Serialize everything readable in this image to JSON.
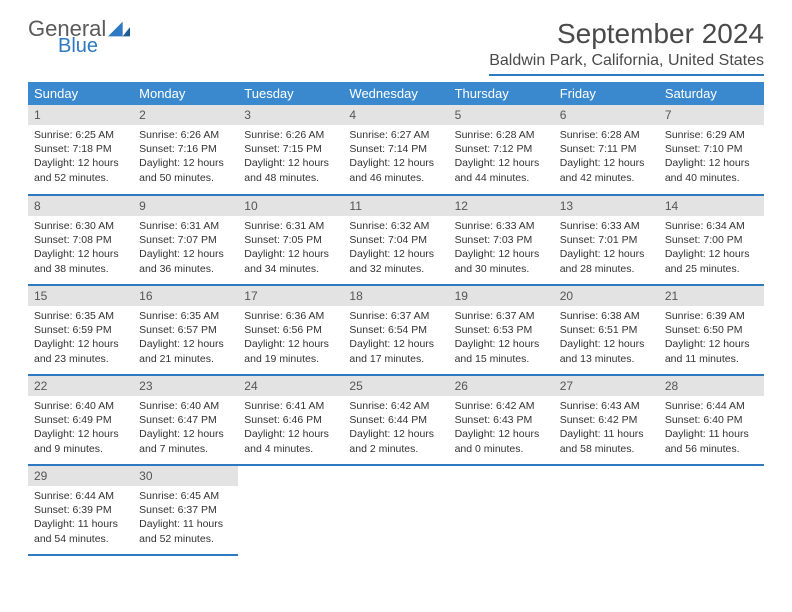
{
  "logo": {
    "general": "General",
    "blue": "Blue"
  },
  "title": "September 2024",
  "location": "Baldwin Park, California, United States",
  "colors": {
    "header_bg": "#3a89cf",
    "accent": "#2f78c2",
    "daynum_bg": "#e3e3e3",
    "text": "#333333"
  },
  "day_headers": [
    "Sunday",
    "Monday",
    "Tuesday",
    "Wednesday",
    "Thursday",
    "Friday",
    "Saturday"
  ],
  "weeks": [
    [
      {
        "num": "1",
        "sunrise": "Sunrise: 6:25 AM",
        "sunset": "Sunset: 7:18 PM",
        "daylight": "Daylight: 12 hours and 52 minutes."
      },
      {
        "num": "2",
        "sunrise": "Sunrise: 6:26 AM",
        "sunset": "Sunset: 7:16 PM",
        "daylight": "Daylight: 12 hours and 50 minutes."
      },
      {
        "num": "3",
        "sunrise": "Sunrise: 6:26 AM",
        "sunset": "Sunset: 7:15 PM",
        "daylight": "Daylight: 12 hours and 48 minutes."
      },
      {
        "num": "4",
        "sunrise": "Sunrise: 6:27 AM",
        "sunset": "Sunset: 7:14 PM",
        "daylight": "Daylight: 12 hours and 46 minutes."
      },
      {
        "num": "5",
        "sunrise": "Sunrise: 6:28 AM",
        "sunset": "Sunset: 7:12 PM",
        "daylight": "Daylight: 12 hours and 44 minutes."
      },
      {
        "num": "6",
        "sunrise": "Sunrise: 6:28 AM",
        "sunset": "Sunset: 7:11 PM",
        "daylight": "Daylight: 12 hours and 42 minutes."
      },
      {
        "num": "7",
        "sunrise": "Sunrise: 6:29 AM",
        "sunset": "Sunset: 7:10 PM",
        "daylight": "Daylight: 12 hours and 40 minutes."
      }
    ],
    [
      {
        "num": "8",
        "sunrise": "Sunrise: 6:30 AM",
        "sunset": "Sunset: 7:08 PM",
        "daylight": "Daylight: 12 hours and 38 minutes."
      },
      {
        "num": "9",
        "sunrise": "Sunrise: 6:31 AM",
        "sunset": "Sunset: 7:07 PM",
        "daylight": "Daylight: 12 hours and 36 minutes."
      },
      {
        "num": "10",
        "sunrise": "Sunrise: 6:31 AM",
        "sunset": "Sunset: 7:05 PM",
        "daylight": "Daylight: 12 hours and 34 minutes."
      },
      {
        "num": "11",
        "sunrise": "Sunrise: 6:32 AM",
        "sunset": "Sunset: 7:04 PM",
        "daylight": "Daylight: 12 hours and 32 minutes."
      },
      {
        "num": "12",
        "sunrise": "Sunrise: 6:33 AM",
        "sunset": "Sunset: 7:03 PM",
        "daylight": "Daylight: 12 hours and 30 minutes."
      },
      {
        "num": "13",
        "sunrise": "Sunrise: 6:33 AM",
        "sunset": "Sunset: 7:01 PM",
        "daylight": "Daylight: 12 hours and 28 minutes."
      },
      {
        "num": "14",
        "sunrise": "Sunrise: 6:34 AM",
        "sunset": "Sunset: 7:00 PM",
        "daylight": "Daylight: 12 hours and 25 minutes."
      }
    ],
    [
      {
        "num": "15",
        "sunrise": "Sunrise: 6:35 AM",
        "sunset": "Sunset: 6:59 PM",
        "daylight": "Daylight: 12 hours and 23 minutes."
      },
      {
        "num": "16",
        "sunrise": "Sunrise: 6:35 AM",
        "sunset": "Sunset: 6:57 PM",
        "daylight": "Daylight: 12 hours and 21 minutes."
      },
      {
        "num": "17",
        "sunrise": "Sunrise: 6:36 AM",
        "sunset": "Sunset: 6:56 PM",
        "daylight": "Daylight: 12 hours and 19 minutes."
      },
      {
        "num": "18",
        "sunrise": "Sunrise: 6:37 AM",
        "sunset": "Sunset: 6:54 PM",
        "daylight": "Daylight: 12 hours and 17 minutes."
      },
      {
        "num": "19",
        "sunrise": "Sunrise: 6:37 AM",
        "sunset": "Sunset: 6:53 PM",
        "daylight": "Daylight: 12 hours and 15 minutes."
      },
      {
        "num": "20",
        "sunrise": "Sunrise: 6:38 AM",
        "sunset": "Sunset: 6:51 PM",
        "daylight": "Daylight: 12 hours and 13 minutes."
      },
      {
        "num": "21",
        "sunrise": "Sunrise: 6:39 AM",
        "sunset": "Sunset: 6:50 PM",
        "daylight": "Daylight: 12 hours and 11 minutes."
      }
    ],
    [
      {
        "num": "22",
        "sunrise": "Sunrise: 6:40 AM",
        "sunset": "Sunset: 6:49 PM",
        "daylight": "Daylight: 12 hours and 9 minutes."
      },
      {
        "num": "23",
        "sunrise": "Sunrise: 6:40 AM",
        "sunset": "Sunset: 6:47 PM",
        "daylight": "Daylight: 12 hours and 7 minutes."
      },
      {
        "num": "24",
        "sunrise": "Sunrise: 6:41 AM",
        "sunset": "Sunset: 6:46 PM",
        "daylight": "Daylight: 12 hours and 4 minutes."
      },
      {
        "num": "25",
        "sunrise": "Sunrise: 6:42 AM",
        "sunset": "Sunset: 6:44 PM",
        "daylight": "Daylight: 12 hours and 2 minutes."
      },
      {
        "num": "26",
        "sunrise": "Sunrise: 6:42 AM",
        "sunset": "Sunset: 6:43 PM",
        "daylight": "Daylight: 12 hours and 0 minutes."
      },
      {
        "num": "27",
        "sunrise": "Sunrise: 6:43 AM",
        "sunset": "Sunset: 6:42 PM",
        "daylight": "Daylight: 11 hours and 58 minutes."
      },
      {
        "num": "28",
        "sunrise": "Sunrise: 6:44 AM",
        "sunset": "Sunset: 6:40 PM",
        "daylight": "Daylight: 11 hours and 56 minutes."
      }
    ],
    [
      {
        "num": "29",
        "sunrise": "Sunrise: 6:44 AM",
        "sunset": "Sunset: 6:39 PM",
        "daylight": "Daylight: 11 hours and 54 minutes."
      },
      {
        "num": "30",
        "sunrise": "Sunrise: 6:45 AM",
        "sunset": "Sunset: 6:37 PM",
        "daylight": "Daylight: 11 hours and 52 minutes."
      },
      null,
      null,
      null,
      null,
      null
    ]
  ]
}
